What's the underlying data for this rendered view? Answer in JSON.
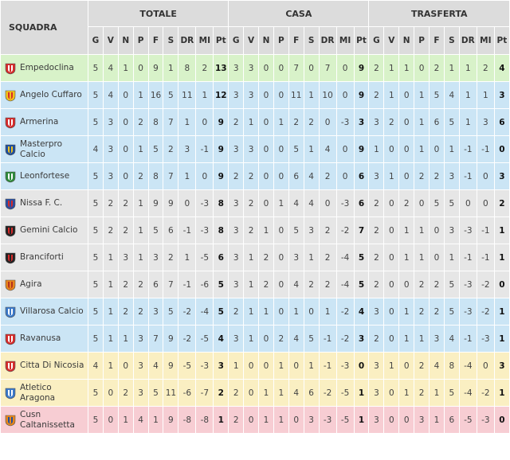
{
  "headers": {
    "team": "SQUADRA",
    "totale": "TOTALE",
    "casa": "CASA",
    "trasferta": "TRASFERTA",
    "cols": [
      "G",
      "V",
      "N",
      "P",
      "F",
      "S",
      "DR",
      "MI",
      "Pt"
    ]
  },
  "rows": [
    {
      "team": "Empedoclina",
      "zone": "green",
      "logo": "club-crest-red-white",
      "totale": [
        "5",
        "4",
        "1",
        "0",
        "9",
        "1",
        "8",
        "2",
        "13"
      ],
      "casa": [
        "3",
        "3",
        "0",
        "0",
        "7",
        "0",
        "7",
        "0",
        "9"
      ],
      "trasferta": [
        "2",
        "1",
        "1",
        "0",
        "2",
        "1",
        "1",
        "2",
        "4"
      ]
    },
    {
      "team": "Angelo Cuffaro",
      "zone": "blue",
      "logo": "club-crest-yellow-red",
      "totale": [
        "5",
        "4",
        "0",
        "1",
        "16",
        "5",
        "11",
        "1",
        "12"
      ],
      "casa": [
        "3",
        "3",
        "0",
        "0",
        "11",
        "1",
        "10",
        "0",
        "9"
      ],
      "trasferta": [
        "2",
        "1",
        "0",
        "1",
        "5",
        "4",
        "1",
        "1",
        "3"
      ]
    },
    {
      "team": "Armerina",
      "zone": "blue",
      "logo": "club-crest-red-white",
      "totale": [
        "5",
        "3",
        "0",
        "2",
        "8",
        "7",
        "1",
        "0",
        "9"
      ],
      "casa": [
        "2",
        "1",
        "0",
        "1",
        "2",
        "2",
        "0",
        "-3",
        "3"
      ],
      "trasferta": [
        "3",
        "2",
        "0",
        "1",
        "6",
        "5",
        "1",
        "3",
        "6"
      ]
    },
    {
      "team": "Masterpro Calcio",
      "zone": "blue",
      "logo": "club-crest-blue-yellow",
      "totale": [
        "4",
        "3",
        "0",
        "1",
        "5",
        "2",
        "3",
        "-1",
        "9"
      ],
      "casa": [
        "3",
        "3",
        "0",
        "0",
        "5",
        "1",
        "4",
        "0",
        "9"
      ],
      "trasferta": [
        "1",
        "0",
        "0",
        "1",
        "0",
        "1",
        "-1",
        "-1",
        "0"
      ]
    },
    {
      "team": "Leonfortese",
      "zone": "blue",
      "logo": "club-crest-green",
      "totale": [
        "5",
        "3",
        "0",
        "2",
        "8",
        "7",
        "1",
        "0",
        "9"
      ],
      "casa": [
        "2",
        "2",
        "0",
        "0",
        "6",
        "4",
        "2",
        "0",
        "6"
      ],
      "trasferta": [
        "3",
        "1",
        "0",
        "2",
        "2",
        "3",
        "-1",
        "0",
        "3"
      ]
    },
    {
      "team": "Nissa F. C.",
      "zone": "grey",
      "logo": "club-crest-blue-red",
      "totale": [
        "5",
        "2",
        "2",
        "1",
        "9",
        "9",
        "0",
        "-3",
        "8"
      ],
      "casa": [
        "3",
        "2",
        "0",
        "1",
        "4",
        "4",
        "0",
        "-3",
        "6"
      ],
      "trasferta": [
        "2",
        "0",
        "2",
        "0",
        "5",
        "5",
        "0",
        "0",
        "2"
      ]
    },
    {
      "team": "Gemini Calcio",
      "zone": "grey",
      "logo": "club-crest-black-red",
      "totale": [
        "5",
        "2",
        "2",
        "1",
        "5",
        "6",
        "-1",
        "-3",
        "8"
      ],
      "casa": [
        "3",
        "2",
        "1",
        "0",
        "5",
        "3",
        "2",
        "-2",
        "7"
      ],
      "trasferta": [
        "2",
        "0",
        "1",
        "1",
        "0",
        "3",
        "-3",
        "-1",
        "1"
      ]
    },
    {
      "team": "Branciforti",
      "zone": "grey",
      "logo": "club-crest-black-red",
      "totale": [
        "5",
        "1",
        "3",
        "1",
        "3",
        "2",
        "1",
        "-5",
        "6"
      ],
      "casa": [
        "3",
        "1",
        "2",
        "0",
        "3",
        "1",
        "2",
        "-4",
        "5"
      ],
      "trasferta": [
        "2",
        "0",
        "1",
        "1",
        "0",
        "1",
        "-1",
        "-1",
        "1"
      ]
    },
    {
      "team": "Agira",
      "zone": "grey",
      "logo": "club-crest-orange-bird",
      "totale": [
        "5",
        "1",
        "2",
        "2",
        "6",
        "7",
        "-1",
        "-6",
        "5"
      ],
      "casa": [
        "3",
        "1",
        "2",
        "0",
        "4",
        "2",
        "2",
        "-4",
        "5"
      ],
      "trasferta": [
        "2",
        "0",
        "0",
        "2",
        "2",
        "5",
        "-3",
        "-2",
        "0"
      ]
    },
    {
      "team": "Villarosa Calcio",
      "zone": "blue",
      "logo": "club-crest-blue-white",
      "totale": [
        "5",
        "1",
        "2",
        "2",
        "3",
        "5",
        "-2",
        "-4",
        "5"
      ],
      "casa": [
        "2",
        "1",
        "1",
        "0",
        "1",
        "0",
        "1",
        "-2",
        "4"
      ],
      "trasferta": [
        "3",
        "0",
        "1",
        "2",
        "2",
        "5",
        "-3",
        "-2",
        "1"
      ]
    },
    {
      "team": "Ravanusa",
      "zone": "blue",
      "logo": "club-crest-red-white",
      "totale": [
        "5",
        "1",
        "1",
        "3",
        "7",
        "9",
        "-2",
        "-5",
        "4"
      ],
      "casa": [
        "3",
        "1",
        "0",
        "2",
        "4",
        "5",
        "-1",
        "-2",
        "3"
      ],
      "trasferta": [
        "2",
        "0",
        "1",
        "1",
        "3",
        "4",
        "-1",
        "-3",
        "1"
      ]
    },
    {
      "team": "Citta Di Nicosia",
      "zone": "yellow",
      "logo": "club-crest-red-white",
      "totale": [
        "4",
        "1",
        "0",
        "3",
        "4",
        "9",
        "-5",
        "-3",
        "3"
      ],
      "casa": [
        "1",
        "0",
        "0",
        "1",
        "0",
        "1",
        "-1",
        "-3",
        "0"
      ],
      "trasferta": [
        "3",
        "1",
        "0",
        "2",
        "4",
        "8",
        "-4",
        "0",
        "3"
      ]
    },
    {
      "team": "Atletico Aragona",
      "zone": "yellow",
      "logo": "club-crest-blue-white",
      "totale": [
        "5",
        "0",
        "2",
        "3",
        "5",
        "11",
        "-6",
        "-7",
        "2"
      ],
      "casa": [
        "2",
        "0",
        "1",
        "1",
        "4",
        "6",
        "-2",
        "-5",
        "1"
      ],
      "trasferta": [
        "3",
        "0",
        "1",
        "2",
        "1",
        "5",
        "-4",
        "-2",
        "1"
      ]
    },
    {
      "team": "Cusn Caltanissetta",
      "zone": "red",
      "logo": "club-crest-orange-blue",
      "totale": [
        "5",
        "0",
        "1",
        "4",
        "1",
        "9",
        "-8",
        "-8",
        "1"
      ],
      "casa": [
        "2",
        "0",
        "1",
        "1",
        "0",
        "3",
        "-3",
        "-5",
        "1"
      ],
      "trasferta": [
        "3",
        "0",
        "0",
        "3",
        "1",
        "6",
        "-5",
        "-3",
        "0"
      ]
    }
  ]
}
